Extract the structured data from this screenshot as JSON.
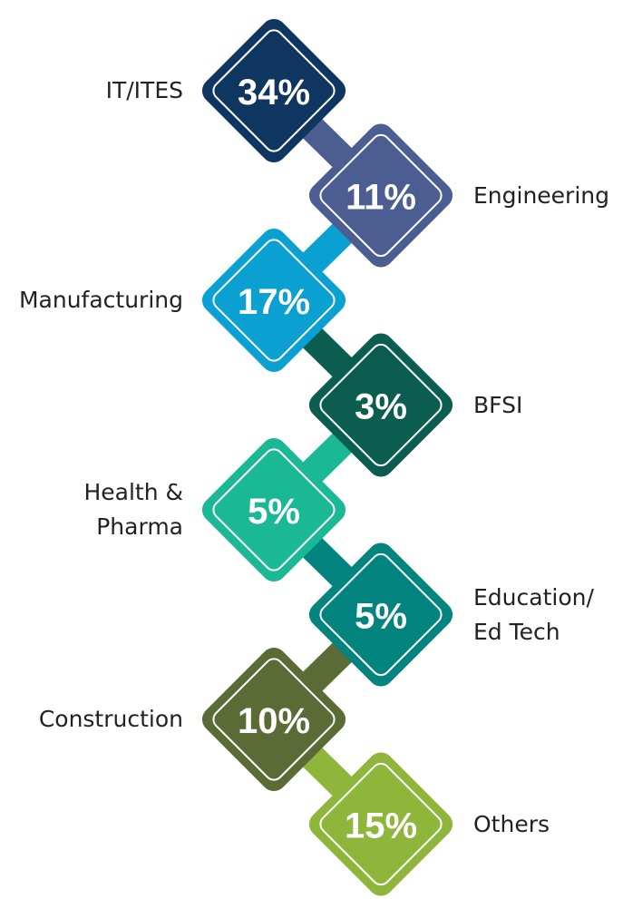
{
  "chart_data": {
    "type": "diamond",
    "categories": [
      "IT/ITES",
      "Engineering",
      "Manufacturing",
      "BFSI",
      "Health &\nPharma",
      "Education/\nEd Tech",
      "Construction",
      "Others"
    ],
    "values": [
      34,
      11,
      17,
      3,
      5,
      5,
      10,
      15
    ],
    "value_labels": [
      "34%",
      "11%",
      "17%",
      "3%",
      "5%",
      "5%",
      "10%",
      "15%"
    ],
    "colors": [
      "#0e3660",
      "#4b5d91",
      "#0aa0d2",
      "#0b5e4f",
      "#1bb895",
      "#04847f",
      "#5a6b35",
      "#8db63b"
    ]
  }
}
